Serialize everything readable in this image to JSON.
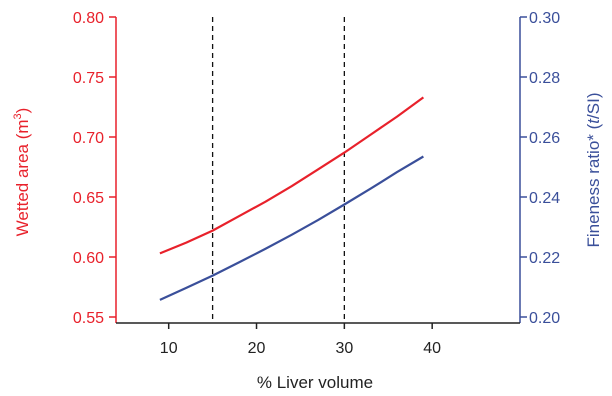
{
  "chart_data": {
    "type": "line",
    "title": "",
    "xlabel": "% Liver volume",
    "ylabel_left": {
      "text": "Wetted area (m",
      "sup": "3",
      "close": ")"
    },
    "ylabel_right": {
      "prefix": "Fineness ratio* (",
      "italic": "t",
      "suffix": "/SI)"
    },
    "xlim": [
      4,
      50
    ],
    "ylim_left": [
      0.545,
      0.8
    ],
    "ylim_right": [
      0.198,
      0.3
    ],
    "x_ticks": [
      10,
      20,
      30,
      40
    ],
    "x_tick_labels": [
      "10",
      "20",
      "30",
      "40"
    ],
    "y_left_ticks": [
      0.55,
      0.6,
      0.65,
      0.7,
      0.75,
      0.8
    ],
    "y_left_tick_labels": [
      "0.55",
      "0.60",
      "0.65",
      "0.70",
      "0.75",
      "0.80"
    ],
    "y_right_ticks": [
      0.2,
      0.22,
      0.24,
      0.26,
      0.28,
      0.3
    ],
    "y_right_tick_labels": [
      "0.20",
      "0.22",
      "0.24",
      "0.26",
      "0.28",
      "0.30"
    ],
    "vlines": [
      15,
      30
    ],
    "grid": false,
    "colors": {
      "left": "#e8212b",
      "right": "#3a4f9a",
      "axis": "#222222"
    },
    "series": [
      {
        "axis": "left",
        "color": "#e8212b",
        "x": [
          9,
          12,
          15,
          18,
          21,
          24,
          27,
          30,
          33,
          36,
          39
        ],
        "y": [
          0.603,
          0.612,
          0.622,
          0.634,
          0.646,
          0.659,
          0.673,
          0.687,
          0.702,
          0.717,
          0.733
        ]
      },
      {
        "axis": "right",
        "color": "#3a4f9a",
        "x": [
          9,
          12,
          15,
          18,
          21,
          24,
          27,
          30,
          33,
          36,
          39
        ],
        "y": [
          0.2057,
          0.2097,
          0.2138,
          0.2182,
          0.2227,
          0.2274,
          0.2323,
          0.2375,
          0.2428,
          0.2483,
          0.2535
        ]
      }
    ]
  }
}
